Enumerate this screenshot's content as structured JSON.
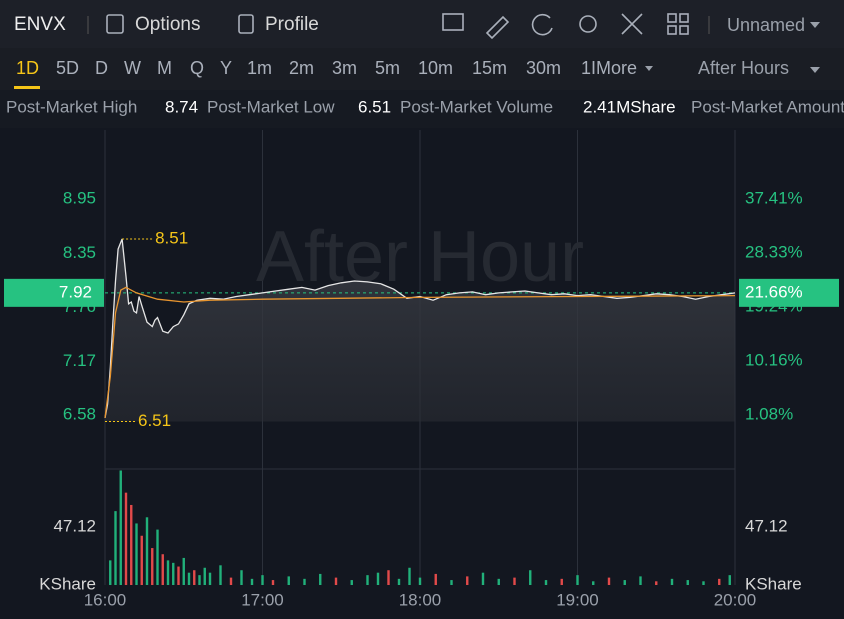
{
  "toolbar": {
    "symbol": "ENVX",
    "options": "Options",
    "profile": "Profile",
    "layout": "Unnamed"
  },
  "timeframes": [
    "1D",
    "5D",
    "D",
    "W",
    "M",
    "Q",
    "Y",
    "1m",
    "2m",
    "3m",
    "5m",
    "10m",
    "15m",
    "30m",
    "1IMore"
  ],
  "session": "After Hours",
  "stats": {
    "high_label": "Post-Market High",
    "high": "8.74",
    "low_label": "Post-Market Low",
    "low": "6.51",
    "volume_label": "Post-Market Volume",
    "volume": "2.41MShare",
    "amount_label": "Post-Market Amount"
  },
  "chart_data": [
    {
      "type": "line",
      "watermark": "After Hour",
      "xlim": [
        0,
        240
      ],
      "ylim": [
        5.99,
        9.54
      ],
      "yticks": [
        8.95,
        8.35,
        7.76,
        7.17,
        6.58
      ],
      "y2lim": [
        -7.99,
        46.54
      ],
      "y2ticks": [
        {
          "value": 37.41,
          "label": "37.41%"
        },
        {
          "value": 28.33,
          "label": "28.33%"
        },
        {
          "value": 19.24,
          "label": "19.24%"
        },
        {
          "value": 10.16,
          "label": "10.16%"
        },
        {
          "value": 1.08,
          "label": "1.08%"
        }
      ],
      "series": [
        {
          "color": "#e6e6e6",
          "x": [
            0,
            1,
            2,
            3,
            4,
            5,
            6.5,
            8,
            9,
            10,
            11,
            12,
            13,
            14,
            16,
            18,
            19,
            20,
            22,
            24,
            26,
            28,
            30,
            32,
            35,
            40,
            45,
            50,
            55,
            60,
            65,
            70,
            75,
            80,
            85,
            90,
            95,
            100,
            105,
            110,
            115,
            120,
            125,
            130,
            135,
            140,
            145,
            150,
            155,
            160,
            165,
            170,
            175,
            180,
            185,
            190,
            195,
            200,
            205,
            210,
            215,
            220,
            225,
            230,
            235,
            240
          ],
          "values": [
            6.55,
            6.7,
            7.1,
            7.6,
            8.05,
            8.4,
            8.51,
            8.1,
            7.8,
            7.82,
            7.72,
            7.7,
            7.88,
            7.78,
            7.6,
            7.55,
            7.62,
            7.65,
            7.5,
            7.48,
            7.55,
            7.58,
            7.68,
            7.8,
            7.84,
            7.86,
            7.85,
            7.88,
            7.9,
            7.92,
            7.94,
            7.96,
            7.98,
            7.95,
            8.0,
            8.03,
            8.05,
            8.04,
            8.02,
            7.96,
            7.86,
            7.88,
            7.84,
            7.9,
            7.92,
            7.93,
            7.9,
            7.92,
            7.93,
            7.94,
            7.92,
            7.9,
            7.91,
            7.89,
            7.9,
            7.88,
            7.86,
            7.87,
            7.89,
            7.91,
            7.9,
            7.88,
            7.85,
            7.88,
            7.9,
            7.92
          ]
        },
        {
          "color": "#e8952f",
          "x": [
            0,
            2,
            4,
            6,
            8,
            12,
            20,
            30,
            40,
            60,
            120,
            180,
            240
          ],
          "values": [
            6.55,
            7.0,
            7.7,
            7.95,
            7.98,
            7.92,
            7.85,
            7.82,
            7.84,
            7.85,
            7.87,
            7.88,
            7.89
          ]
        }
      ],
      "annotations": [
        {
          "x": 6.5,
          "value": 8.51
        },
        {
          "x": 0,
          "value": 6.51
        }
      ],
      "last_price": 7.92,
      "last_change": {
        "value": 21.66,
        "label": "21.66%"
      }
    },
    {
      "type": "bar",
      "xlim": [
        0,
        240
      ],
      "ylim": [
        0,
        93.4
      ],
      "yticks": [
        47.12
      ],
      "unit_label": "KShare",
      "xticks": [
        {
          "value": 0,
          "label": "16:00"
        },
        {
          "value": 60,
          "label": "17:00"
        },
        {
          "value": 120,
          "label": "18:00"
        },
        {
          "value": 180,
          "label": "19:00"
        },
        {
          "value": 240,
          "label": "20:00"
        }
      ],
      "x": [
        2,
        4,
        6,
        8,
        10,
        12,
        14,
        16,
        18,
        20,
        22,
        24,
        26,
        28,
        30,
        32,
        34,
        36,
        38,
        40,
        44,
        48,
        52,
        56,
        60,
        64,
        70,
        76,
        82,
        88,
        94,
        100,
        104,
        108,
        112,
        116,
        120,
        126,
        132,
        138,
        144,
        150,
        156,
        162,
        168,
        174,
        180,
        186,
        192,
        198,
        204,
        210,
        216,
        222,
        228,
        234,
        238
      ],
      "values": [
        20,
        60,
        93,
        75,
        65,
        50,
        40,
        55,
        30,
        45,
        25,
        20,
        18,
        15,
        22,
        10,
        12,
        8,
        14,
        10,
        16,
        6,
        12,
        5,
        8,
        4,
        7,
        5,
        9,
        6,
        4,
        8,
        10,
        12,
        5,
        14,
        6,
        9,
        4,
        7,
        10,
        5,
        6,
        12,
        4,
        5,
        8,
        3,
        6,
        4,
        7,
        3,
        5,
        4,
        3,
        5,
        8
      ],
      "colors": [
        "#21b17a",
        "#21b17a",
        "#21b17a",
        "#e24a4a",
        "#e24a4a",
        "#21b17a",
        "#e24a4a",
        "#21b17a",
        "#e24a4a",
        "#21b17a",
        "#e24a4a",
        "#21b17a",
        "#21b17a",
        "#e24a4a",
        "#21b17a",
        "#21b17a",
        "#e24a4a",
        "#21b17a",
        "#21b17a",
        "#21b17a",
        "#21b17a",
        "#e24a4a",
        "#21b17a",
        "#21b17a",
        "#21b17a",
        "#e24a4a",
        "#21b17a",
        "#21b17a",
        "#21b17a",
        "#e24a4a",
        "#21b17a",
        "#21b17a",
        "#21b17a",
        "#e24a4a",
        "#21b17a",
        "#21b17a",
        "#21b17a",
        "#e24a4a",
        "#21b17a",
        "#e24a4a",
        "#21b17a",
        "#21b17a",
        "#e24a4a",
        "#21b17a",
        "#21b17a",
        "#e24a4a",
        "#21b17a",
        "#21b17a",
        "#e24a4a",
        "#21b17a",
        "#21b17a",
        "#e24a4a",
        "#21b17a",
        "#21b17a",
        "#21b17a",
        "#e24a4a",
        "#21b17a"
      ]
    }
  ]
}
